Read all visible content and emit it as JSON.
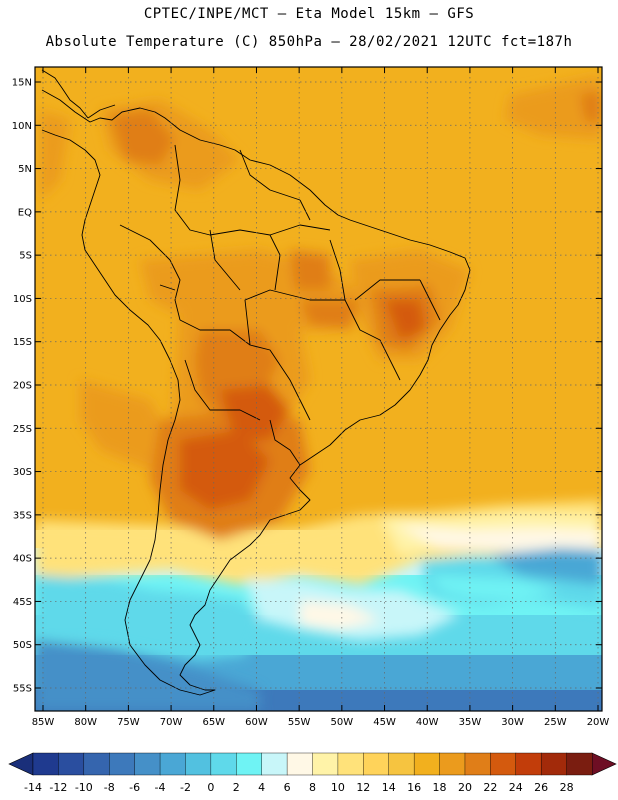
{
  "title_line1": "CPTEC/INPE/MCT –  Eta Model 15km – GFS",
  "title_line2": "Absolute Temperature (C) 850hPa – 28/02/2021 12UTC fct=187h",
  "lat_labels": [
    "15N",
    "10N",
    "5N",
    "EQ",
    "5S",
    "10S",
    "15S",
    "20S",
    "25S",
    "30S",
    "35S",
    "40S",
    "45S",
    "50S",
    "55S"
  ],
  "lat_values": [
    15,
    10,
    5,
    0,
    -5,
    -10,
    -15,
    -20,
    -25,
    -30,
    -35,
    -40,
    -45,
    -50,
    -55
  ],
  "lon_labels": [
    "85W",
    "80W",
    "75W",
    "70W",
    "65W",
    "60W",
    "55W",
    "50W",
    "45W",
    "40W",
    "35W",
    "30W",
    "25W",
    "20W"
  ],
  "lon_values": [
    -85,
    -80,
    -75,
    -70,
    -65,
    -60,
    -55,
    -50,
    -45,
    -40,
    -35,
    -30,
    -25,
    -20
  ],
  "colorbar": {
    "labels": [
      "-14",
      "-12",
      "-10",
      "-8",
      "-6",
      "-4",
      "-2",
      "0",
      "2",
      "4",
      "6",
      "8",
      "10",
      "12",
      "14",
      "16",
      "18",
      "20",
      "22",
      "24",
      "26",
      "28"
    ],
    "colors": [
      "#1f3a8f",
      "#2a4e9f",
      "#3565ae",
      "#3d79bb",
      "#4590c8",
      "#4aa7d5",
      "#52c1e0",
      "#5fd9ea",
      "#6ff3f4",
      "#c8f6f9",
      "#fff8e6",
      "#fff3a8",
      "#ffe27a",
      "#ffd35a",
      "#f6c440",
      "#f2b01e",
      "#eb9b1d",
      "#e07e18",
      "#d45a0e",
      "#c23d0a",
      "#a22a0a",
      "#7a1d10"
    ],
    "under_color": "#1a2f7a",
    "over_color": "#6e0e24"
  }
}
